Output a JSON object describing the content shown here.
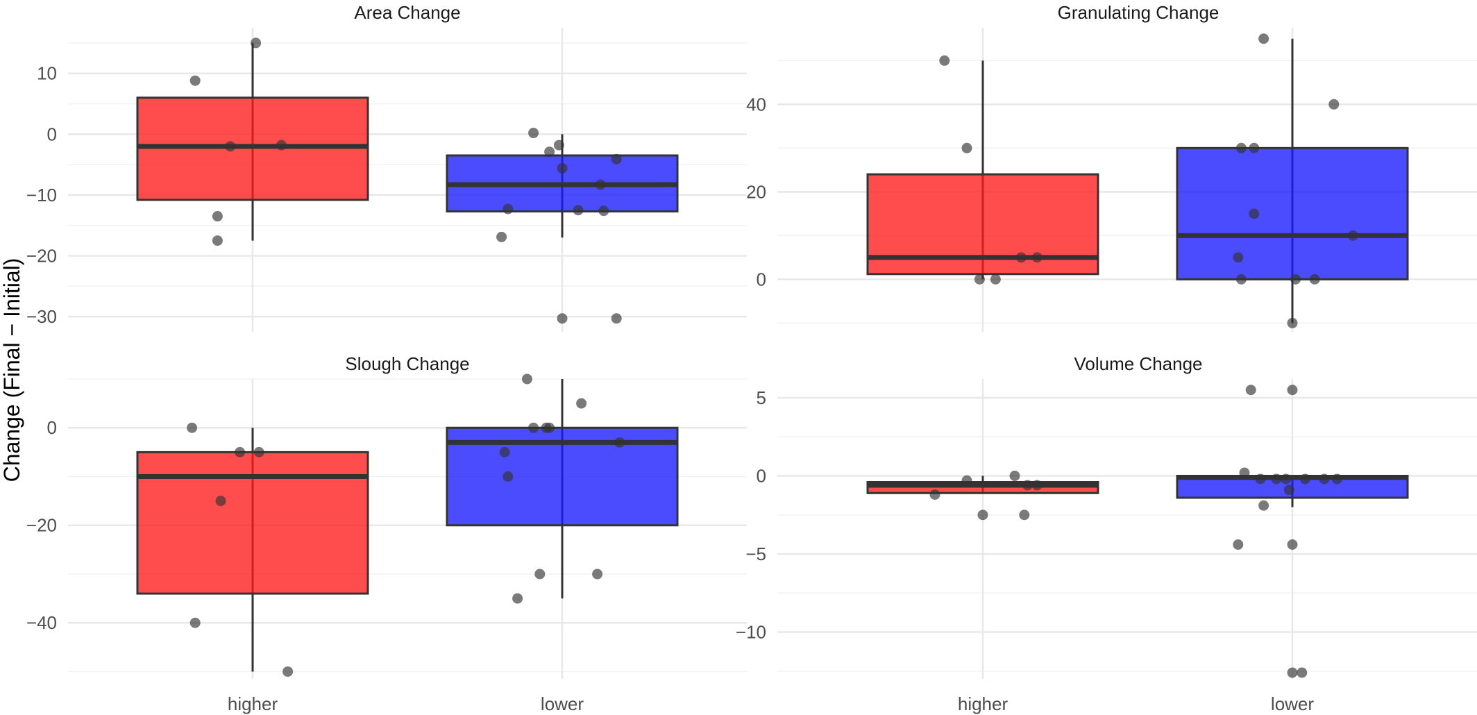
{
  "chart_data": {
    "type": "box",
    "ylabel": "Change (Final − Initial)",
    "categories": [
      "higher",
      "lower"
    ],
    "colors": {
      "higher": "#ff1a1a",
      "lower": "#1a1aff",
      "points": "#333333",
      "median": "#333333"
    },
    "grid": true,
    "panels": [
      {
        "title": "Area Change",
        "ylim": [
          -32.5,
          17.5
        ],
        "yticks": [
          10,
          0,
          -10,
          -20,
          -30
        ],
        "yticklabels": [
          "10",
          "0",
          "−10",
          "−20",
          "−30"
        ],
        "boxes": [
          {
            "group": "higher",
            "q1": -10.8,
            "median": -2,
            "q3": 6,
            "whisker_low": -17.5,
            "whisker_high": 15
          },
          {
            "group": "lower",
            "q1": -12.7,
            "median": -8.3,
            "q3": -3.5,
            "whisker_low": -17,
            "whisker_high": 0
          }
        ],
        "points": [
          {
            "group": "higher",
            "x": -0.18,
            "y": 8.8
          },
          {
            "group": "higher",
            "x": 0.01,
            "y": 15
          },
          {
            "group": "higher",
            "x": -0.07,
            "y": -2
          },
          {
            "group": "higher",
            "x": 0.09,
            "y": -1.8
          },
          {
            "group": "higher",
            "x": -0.11,
            "y": -13.5
          },
          {
            "group": "higher",
            "x": -0.11,
            "y": -17.5
          },
          {
            "group": "lower",
            "x": -0.09,
            "y": 0.2
          },
          {
            "group": "lower",
            "x": -0.04,
            "y": -2.9
          },
          {
            "group": "lower",
            "x": -0.01,
            "y": -1.8
          },
          {
            "group": "lower",
            "x": 0,
            "y": -5.6
          },
          {
            "group": "lower",
            "x": 0.17,
            "y": -4.1
          },
          {
            "group": "lower",
            "x": 0.12,
            "y": -8.3
          },
          {
            "group": "lower",
            "x": -0.17,
            "y": -12.3
          },
          {
            "group": "lower",
            "x": 0.05,
            "y": -12.5
          },
          {
            "group": "lower",
            "x": 0.13,
            "y": -12.6
          },
          {
            "group": "lower",
            "x": -0.19,
            "y": -16.9
          },
          {
            "group": "lower",
            "x": 0,
            "y": -30.3
          },
          {
            "group": "lower",
            "x": 0.17,
            "y": -30.3
          }
        ]
      },
      {
        "title": "Granulating Change",
        "ylim": [
          -12,
          57.5
        ],
        "yticks": [
          40,
          20,
          0
        ],
        "yticklabels": [
          "40",
          "20",
          "0"
        ],
        "boxes": [
          {
            "group": "higher",
            "q1": 1.2,
            "median": 5,
            "q3": 24,
            "whisker_low": 0,
            "whisker_high": 50
          },
          {
            "group": "lower",
            "q1": 0,
            "median": 10,
            "q3": 30,
            "whisker_low": -10,
            "whisker_high": 55
          }
        ],
        "points": [
          {
            "group": "higher",
            "x": -0.12,
            "y": 50
          },
          {
            "group": "higher",
            "x": -0.05,
            "y": 30
          },
          {
            "group": "higher",
            "x": 0.12,
            "y": 5
          },
          {
            "group": "higher",
            "x": 0.17,
            "y": 5
          },
          {
            "group": "higher",
            "x": -0.01,
            "y": 0
          },
          {
            "group": "higher",
            "x": 0.04,
            "y": 0
          },
          {
            "group": "lower",
            "x": -0.09,
            "y": 55
          },
          {
            "group": "lower",
            "x": 0.13,
            "y": 40
          },
          {
            "group": "lower",
            "x": -0.16,
            "y": 30
          },
          {
            "group": "lower",
            "x": -0.12,
            "y": 30
          },
          {
            "group": "lower",
            "x": -0.12,
            "y": 15
          },
          {
            "group": "lower",
            "x": -0.17,
            "y": 5
          },
          {
            "group": "lower",
            "x": 0.19,
            "y": 10
          },
          {
            "group": "lower",
            "x": -0.16,
            "y": 0
          },
          {
            "group": "lower",
            "x": 0.01,
            "y": 0
          },
          {
            "group": "lower",
            "x": 0.07,
            "y": 0
          },
          {
            "group": "lower",
            "x": 0,
            "y": -10
          }
        ]
      },
      {
        "title": "Slough Change",
        "ylim": [
          -51.5,
          10
        ],
        "yticks": [
          0,
          -20,
          -40
        ],
        "yticklabels": [
          "0",
          "−20",
          "−40"
        ],
        "boxes": [
          {
            "group": "higher",
            "q1": -34,
            "median": -10,
            "q3": -5,
            "whisker_low": -50,
            "whisker_high": 0
          },
          {
            "group": "lower",
            "q1": -20,
            "median": -3,
            "q3": 0,
            "whisker_low": -35,
            "whisker_high": 10
          }
        ],
        "points": [
          {
            "group": "higher",
            "x": -0.19,
            "y": 0
          },
          {
            "group": "higher",
            "x": -0.04,
            "y": -5
          },
          {
            "group": "higher",
            "x": 0.02,
            "y": -5
          },
          {
            "group": "higher",
            "x": -0.1,
            "y": -15
          },
          {
            "group": "higher",
            "x": -0.18,
            "y": -40
          },
          {
            "group": "higher",
            "x": 0.11,
            "y": -50
          },
          {
            "group": "lower",
            "x": -0.11,
            "y": 10
          },
          {
            "group": "lower",
            "x": 0.06,
            "y": 5
          },
          {
            "group": "lower",
            "x": -0.09,
            "y": 0
          },
          {
            "group": "lower",
            "x": -0.05,
            "y": 0
          },
          {
            "group": "lower",
            "x": -0.04,
            "y": 0
          },
          {
            "group": "lower",
            "x": 0.18,
            "y": -3
          },
          {
            "group": "lower",
            "x": -0.18,
            "y": -5
          },
          {
            "group": "lower",
            "x": -0.17,
            "y": -10
          },
          {
            "group": "lower",
            "x": -0.07,
            "y": -30
          },
          {
            "group": "lower",
            "x": 0.11,
            "y": -30
          },
          {
            "group": "lower",
            "x": -0.14,
            "y": -35
          }
        ]
      },
      {
        "title": "Volume Change",
        "ylim": [
          -13,
          6.2
        ],
        "yticks": [
          5,
          0,
          -5,
          -10
        ],
        "yticklabels": [
          "5",
          "0",
          "−5",
          "−10"
        ],
        "boxes": [
          {
            "group": "higher",
            "q1": -1.1,
            "median": -0.6,
            "q3": -0.4,
            "whisker_low": -1.1,
            "whisker_high": 0
          },
          {
            "group": "lower",
            "q1": -1.4,
            "median": -0.1,
            "q3": 0,
            "whisker_low": -2,
            "whisker_high": 0
          }
        ],
        "points": [
          {
            "group": "higher",
            "x": -0.15,
            "y": -1.2
          },
          {
            "group": "higher",
            "x": -0.05,
            "y": -0.3
          },
          {
            "group": "higher",
            "x": 0,
            "y": -2.5
          },
          {
            "group": "higher",
            "x": 0.1,
            "y": 0
          },
          {
            "group": "higher",
            "x": 0.14,
            "y": -0.6
          },
          {
            "group": "higher",
            "x": 0.17,
            "y": -0.6
          },
          {
            "group": "higher",
            "x": 0.13,
            "y": -2.5
          },
          {
            "group": "lower",
            "x": -0.13,
            "y": 5.5
          },
          {
            "group": "lower",
            "x": 0,
            "y": 5.5
          },
          {
            "group": "lower",
            "x": -0.15,
            "y": 0.2
          },
          {
            "group": "lower",
            "x": -0.1,
            "y": -0.2
          },
          {
            "group": "lower",
            "x": -0.05,
            "y": -0.2
          },
          {
            "group": "lower",
            "x": -0.02,
            "y": -0.2
          },
          {
            "group": "lower",
            "x": 0.04,
            "y": -0.2
          },
          {
            "group": "lower",
            "x": 0.1,
            "y": -0.2
          },
          {
            "group": "lower",
            "x": 0.14,
            "y": -0.2
          },
          {
            "group": "lower",
            "x": -0.01,
            "y": -0.9
          },
          {
            "group": "lower",
            "x": -0.09,
            "y": -1.9
          },
          {
            "group": "lower",
            "x": -0.17,
            "y": -4.4
          },
          {
            "group": "lower",
            "x": 0,
            "y": -4.4
          },
          {
            "group": "lower",
            "x": 0,
            "y": -12.6
          },
          {
            "group": "lower",
            "x": 0.03,
            "y": -12.6
          }
        ]
      }
    ]
  }
}
